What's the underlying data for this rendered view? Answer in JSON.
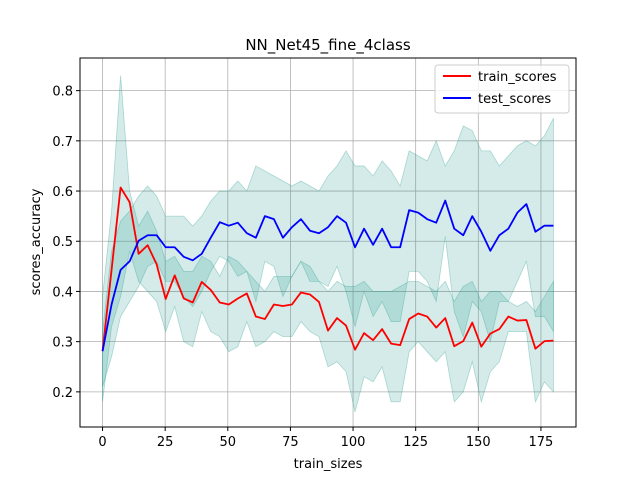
{
  "chart_data": {
    "type": "line",
    "title": "NN_Net45_fine_4class",
    "xlabel": "train_sizes",
    "ylabel": "scores_accuracy",
    "xlim": [
      -9,
      189
    ],
    "ylim": [
      0.13,
      0.865
    ],
    "xticks": [
      0,
      25,
      50,
      75,
      100,
      125,
      150,
      175
    ],
    "yticks": [
      0.2,
      0.3,
      0.4,
      0.5,
      0.6,
      0.7,
      0.8
    ],
    "xtick_labels": [
      "0",
      "25",
      "50",
      "75",
      "100",
      "125",
      "150",
      "175"
    ],
    "ytick_labels": [
      "0.2",
      "0.3",
      "0.4",
      "0.5",
      "0.6",
      "0.7",
      "0.8"
    ],
    "grid": true,
    "legend_position": "top-right",
    "x": [
      0,
      3.6,
      7.2,
      10.8,
      14.4,
      18,
      21.6,
      25.2,
      28.8,
      32.4,
      36,
      39.6,
      43.2,
      46.8,
      50.4,
      54,
      57.6,
      61.2,
      64.8,
      68.4,
      72,
      75.6,
      79.2,
      82.8,
      86.4,
      90,
      93.6,
      97.2,
      100.8,
      104.4,
      108,
      111.6,
      115.2,
      118.8,
      122.4,
      126,
      129.6,
      133.2,
      136.8,
      140.4,
      144,
      147.6,
      151.2,
      154.8,
      158.4,
      162,
      165.6,
      169.2,
      172.8,
      176.4,
      180
    ],
    "series": [
      {
        "name": "train_scores",
        "color": "#ff0000",
        "values": [
          0.281,
          0.443,
          0.607,
          0.578,
          0.475,
          0.492,
          0.454,
          0.385,
          0.432,
          0.386,
          0.378,
          0.419,
          0.403,
          0.378,
          0.374,
          0.386,
          0.396,
          0.35,
          0.345,
          0.374,
          0.371,
          0.374,
          0.398,
          0.394,
          0.379,
          0.322,
          0.347,
          0.332,
          0.284,
          0.317,
          0.303,
          0.325,
          0.296,
          0.293,
          0.345,
          0.356,
          0.35,
          0.328,
          0.347,
          0.291,
          0.301,
          0.338,
          0.29,
          0.316,
          0.325,
          0.35,
          0.342,
          0.343,
          0.286,
          0.301,
          0.302
        ],
        "band_upper": [
          0.39,
          0.56,
          0.83,
          0.6,
          0.53,
          0.56,
          0.52,
          0.46,
          0.47,
          0.44,
          0.44,
          0.47,
          0.46,
          0.43,
          0.47,
          0.46,
          0.44,
          0.42,
          0.4,
          0.43,
          0.43,
          0.43,
          0.46,
          0.45,
          0.42,
          0.4,
          0.42,
          0.41,
          0.41,
          0.42,
          0.4,
          0.4,
          0.4,
          0.41,
          0.42,
          0.42,
          0.41,
          0.4,
          0.42,
          0.38,
          0.41,
          0.42,
          0.38,
          0.4,
          0.4,
          0.38,
          0.37,
          0.38,
          0.36,
          0.39,
          0.42
        ],
        "band_lower": [
          0.18,
          0.33,
          0.39,
          0.48,
          0.42,
          0.4,
          0.38,
          0.32,
          0.37,
          0.3,
          0.29,
          0.36,
          0.32,
          0.31,
          0.28,
          0.29,
          0.34,
          0.29,
          0.3,
          0.32,
          0.31,
          0.31,
          0.34,
          0.32,
          0.31,
          0.25,
          0.26,
          0.24,
          0.16,
          0.23,
          0.22,
          0.25,
          0.18,
          0.18,
          0.28,
          0.3,
          0.28,
          0.26,
          0.28,
          0.18,
          0.2,
          0.26,
          0.18,
          0.24,
          0.26,
          0.32,
          0.32,
          0.32,
          0.18,
          0.22,
          0.2
        ]
      },
      {
        "name": "test_scores",
        "color": "#0000ff",
        "values": [
          0.281,
          0.374,
          0.443,
          0.46,
          0.501,
          0.512,
          0.512,
          0.488,
          0.488,
          0.469,
          0.462,
          0.475,
          0.507,
          0.538,
          0.531,
          0.537,
          0.516,
          0.507,
          0.55,
          0.544,
          0.507,
          0.528,
          0.544,
          0.521,
          0.516,
          0.528,
          0.55,
          0.537,
          0.488,
          0.525,
          0.493,
          0.525,
          0.488,
          0.488,
          0.562,
          0.557,
          0.544,
          0.537,
          0.581,
          0.525,
          0.512,
          0.55,
          0.519,
          0.481,
          0.512,
          0.525,
          0.557,
          0.574,
          0.519,
          0.531,
          0.531
        ],
        "band_upper": [
          0.32,
          0.48,
          0.54,
          0.56,
          0.59,
          0.61,
          0.59,
          0.55,
          0.55,
          0.55,
          0.53,
          0.55,
          0.58,
          0.6,
          0.6,
          0.62,
          0.6,
          0.65,
          0.64,
          0.63,
          0.62,
          0.61,
          0.62,
          0.61,
          0.6,
          0.63,
          0.65,
          0.68,
          0.65,
          0.65,
          0.63,
          0.66,
          0.64,
          0.61,
          0.68,
          0.67,
          0.66,
          0.7,
          0.65,
          0.68,
          0.73,
          0.72,
          0.68,
          0.68,
          0.65,
          0.67,
          0.69,
          0.7,
          0.69,
          0.71,
          0.745
        ],
        "band_lower": [
          0.21,
          0.27,
          0.35,
          0.38,
          0.41,
          0.45,
          0.46,
          0.42,
          0.42,
          0.39,
          0.37,
          0.4,
          0.44,
          0.47,
          0.46,
          0.43,
          0.44,
          0.38,
          0.46,
          0.45,
          0.39,
          0.43,
          0.46,
          0.42,
          0.42,
          0.41,
          0.45,
          0.4,
          0.33,
          0.4,
          0.35,
          0.38,
          0.34,
          0.34,
          0.44,
          0.44,
          0.42,
          0.38,
          0.51,
          0.36,
          0.31,
          0.38,
          0.36,
          0.3,
          0.38,
          0.38,
          0.42,
          0.46,
          0.35,
          0.35,
          0.32
        ]
      }
    ],
    "band_color": "#2a9d8f"
  }
}
